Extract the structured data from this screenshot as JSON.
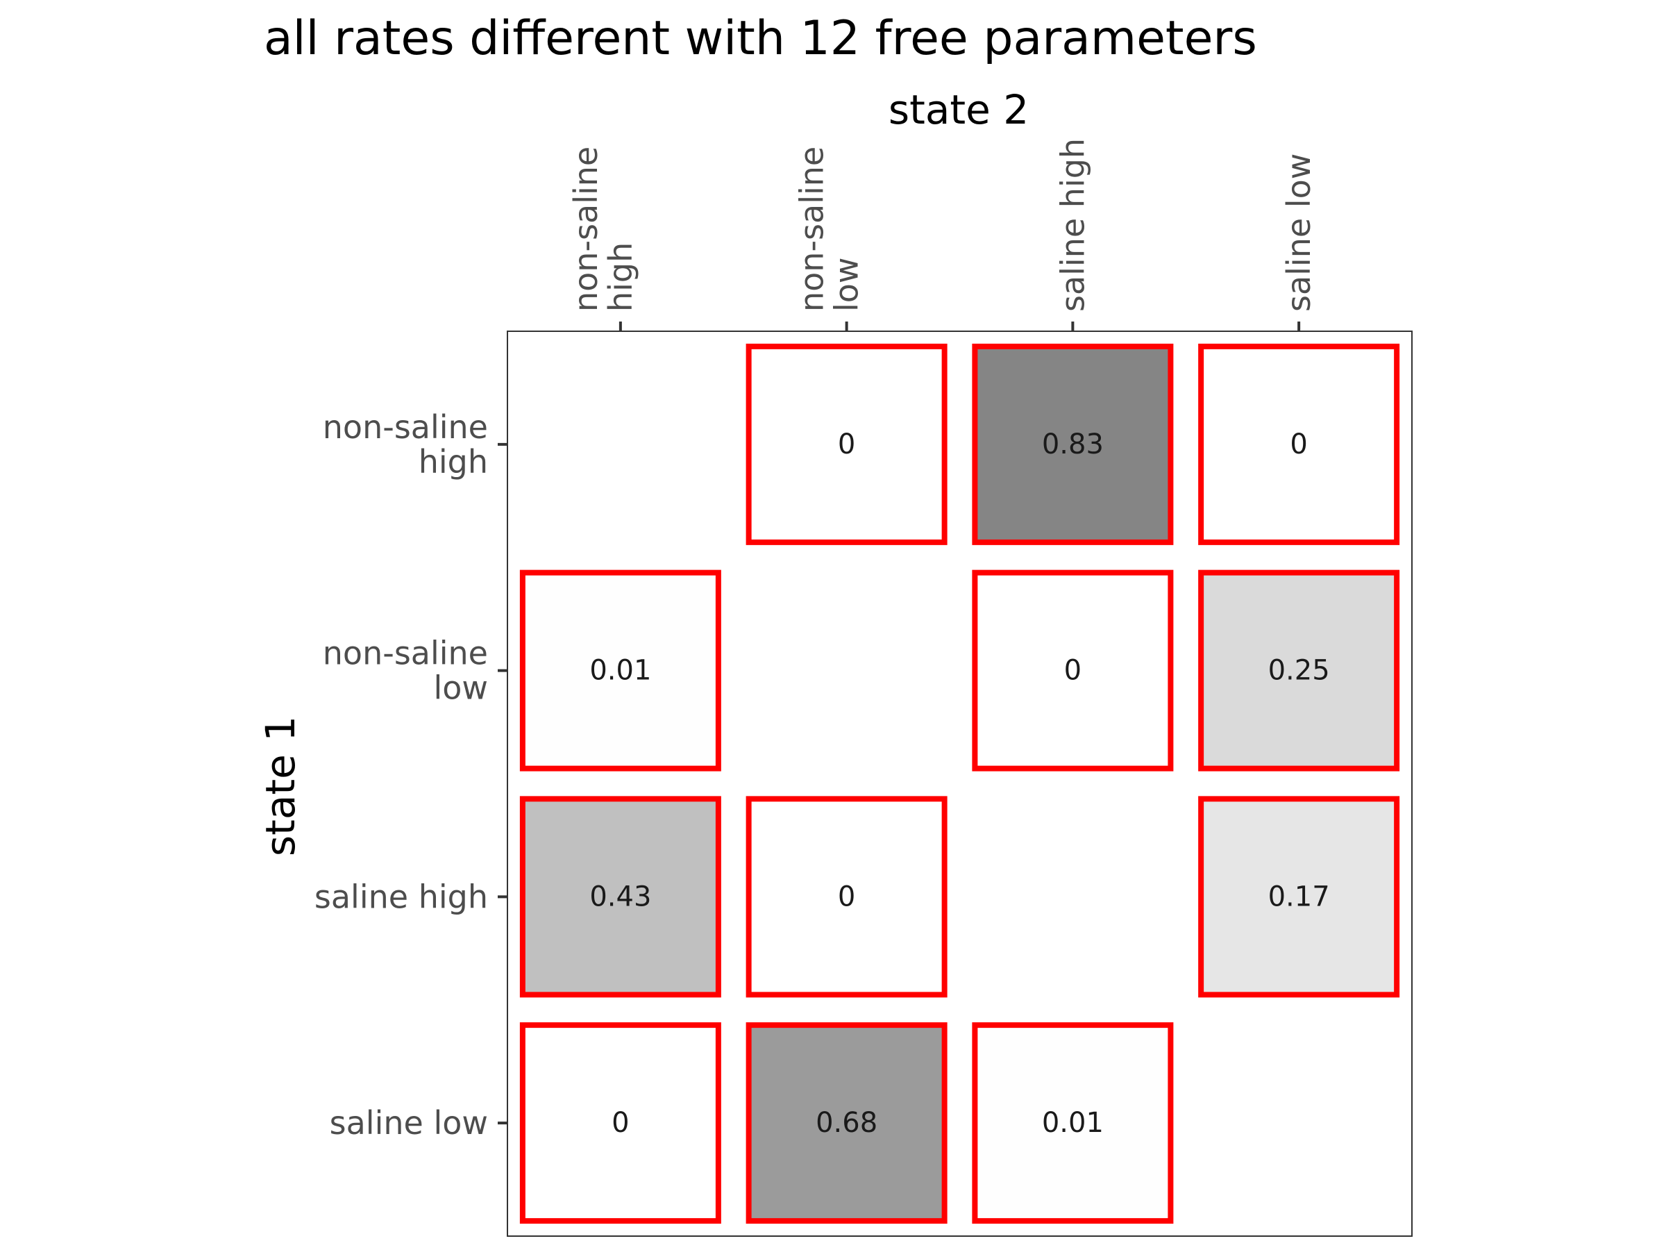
{
  "chart_data": {
    "type": "heatmap",
    "title": "all rates different with 12 free parameters",
    "xlabel": "state 2",
    "ylabel": "state 1",
    "x_position": "top",
    "x_categories": [
      [
        "non-saline",
        "high"
      ],
      [
        "non-saline",
        "low"
      ],
      [
        "saline high"
      ],
      [
        "saline low"
      ]
    ],
    "y_categories": [
      [
        "non-saline",
        "high"
      ],
      [
        "non-saline",
        "low"
      ],
      [
        "saline high"
      ],
      [
        "saline low"
      ]
    ],
    "cells": [
      {
        "row": 0,
        "col": 1,
        "value": 0,
        "label": "0"
      },
      {
        "row": 0,
        "col": 2,
        "value": 0.83,
        "label": "0.83"
      },
      {
        "row": 0,
        "col": 3,
        "value": 0,
        "label": "0"
      },
      {
        "row": 1,
        "col": 0,
        "value": 0.01,
        "label": "0.01"
      },
      {
        "row": 1,
        "col": 2,
        "value": 0,
        "label": "0"
      },
      {
        "row": 1,
        "col": 3,
        "value": 0.25,
        "label": "0.25"
      },
      {
        "row": 2,
        "col": 0,
        "value": 0.43,
        "label": "0.43"
      },
      {
        "row": 2,
        "col": 1,
        "value": 0,
        "label": "0"
      },
      {
        "row": 2,
        "col": 3,
        "value": 0.17,
        "label": "0.17"
      },
      {
        "row": 3,
        "col": 0,
        "value": 0,
        "label": "0"
      },
      {
        "row": 3,
        "col": 1,
        "value": 0.68,
        "label": "0.68"
      },
      {
        "row": 3,
        "col": 2,
        "value": 0.01,
        "label": "0.01"
      }
    ],
    "value_range": [
      0,
      0.83
    ],
    "color_low": "#ffffff",
    "color_high": "#858585",
    "cell_border_color": "#ff0000",
    "grid": false,
    "legend": "none"
  }
}
